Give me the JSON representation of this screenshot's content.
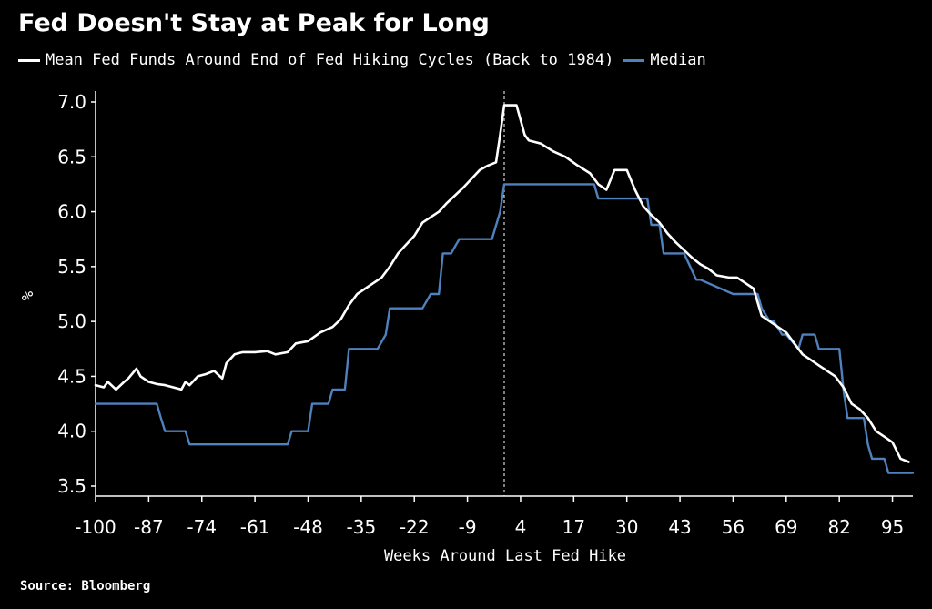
{
  "header": {
    "title": "Fed Doesn't Stay at Peak for Long"
  },
  "legend": [
    {
      "label": "Mean Fed Funds Around End of Fed Hiking Cycles (Back to 1984)",
      "color": "#ffffff"
    },
    {
      "label": "Median",
      "color": "#4f81bd"
    }
  ],
  "footer": {
    "source": "Source: Bloomberg"
  },
  "chart_data": {
    "type": "line",
    "title": "Fed Doesn't Stay at Peak for Long",
    "xlabel": "Weeks Around Last Fed Hike",
    "ylabel": "%",
    "xlim": [
      -100,
      100
    ],
    "ylim": [
      3.5,
      7.0
    ],
    "x_ticks": [
      -100,
      -87,
      -74,
      -61,
      -48,
      -35,
      -22,
      -9,
      4,
      17,
      30,
      43,
      56,
      69,
      82,
      95
    ],
    "y_ticks": [
      3.5,
      4.0,
      4.5,
      5.0,
      5.5,
      6.0,
      6.5,
      7.0
    ],
    "y_tick_labels": [
      "3.5",
      "4.0",
      "4.5",
      "5.0",
      "5.5",
      "6.0",
      "6.5",
      "7.0"
    ],
    "reference_line_x": 0,
    "grid": false,
    "legend_position": "top",
    "series": [
      {
        "name": "Mean Fed Funds Around End of Fed Hiking Cycles (Back to 1984)",
        "color": "#ffffff",
        "x": [
          -100,
          -98,
          -97,
          -95,
          -93,
          -92,
          -90,
          -89,
          -87,
          -85,
          -83,
          -81,
          -79,
          -78,
          -77,
          -75,
          -73,
          -71,
          -69,
          -68,
          -66,
          -64,
          -61,
          -58,
          -56,
          -53,
          -51,
          -48,
          -45,
          -42,
          -40,
          -38,
          -36,
          -34,
          -32,
          -30,
          -28,
          -26,
          -24,
          -22,
          -20,
          -18,
          -16,
          -14,
          -12,
          -10,
          -8,
          -6,
          -4,
          -2,
          -1,
          0,
          1,
          3,
          5,
          6,
          9,
          12,
          15,
          18,
          21,
          23,
          25,
          27,
          30,
          32,
          34,
          36,
          38,
          40,
          42,
          44,
          46,
          48,
          50,
          52,
          55,
          57,
          59,
          61,
          63,
          65,
          67,
          69,
          71,
          73,
          75,
          77,
          79,
          81,
          83,
          85,
          87,
          89,
          91,
          93,
          95,
          97,
          99
        ],
        "y": [
          4.42,
          4.4,
          4.45,
          4.38,
          4.45,
          4.48,
          4.57,
          4.5,
          4.45,
          4.43,
          4.42,
          4.4,
          4.38,
          4.45,
          4.42,
          4.5,
          4.52,
          4.55,
          4.48,
          4.62,
          4.7,
          4.72,
          4.72,
          4.73,
          4.7,
          4.72,
          4.8,
          4.82,
          4.9,
          4.95,
          5.02,
          5.15,
          5.25,
          5.3,
          5.35,
          5.4,
          5.5,
          5.62,
          5.7,
          5.78,
          5.9,
          5.95,
          6.0,
          6.08,
          6.15,
          6.22,
          6.3,
          6.38,
          6.42,
          6.45,
          6.7,
          6.97,
          6.97,
          6.97,
          6.7,
          6.65,
          6.62,
          6.55,
          6.5,
          6.42,
          6.35,
          6.25,
          6.2,
          6.38,
          6.38,
          6.2,
          6.05,
          5.97,
          5.9,
          5.8,
          5.72,
          5.65,
          5.58,
          5.52,
          5.48,
          5.42,
          5.4,
          5.4,
          5.35,
          5.3,
          5.05,
          5.0,
          4.95,
          4.9,
          4.8,
          4.7,
          4.65,
          4.6,
          4.55,
          4.5,
          4.4,
          4.25,
          4.2,
          4.12,
          4.0,
          3.95,
          3.9,
          3.75,
          3.72
        ]
      },
      {
        "name": "Median",
        "color": "#4f81bd",
        "x": [
          -100,
          -85,
          -84,
          -83,
          -78,
          -77,
          -70,
          -61,
          -53,
          -52,
          -48,
          -47,
          -43,
          -42,
          -39,
          -38,
          -34,
          -31,
          -29,
          -28,
          -22,
          -20,
          -18,
          -16,
          -15,
          -13,
          -11,
          -10,
          -9,
          -7,
          -3,
          -1,
          0,
          2,
          16,
          17,
          22,
          23,
          30,
          31,
          35,
          36,
          38,
          39,
          43,
          44,
          47,
          48,
          56,
          62,
          63,
          65,
          66,
          68,
          69,
          72,
          73,
          76,
          77,
          80,
          82,
          83,
          84,
          88,
          89,
          90,
          93,
          94,
          96,
          100
        ],
        "y": [
          4.25,
          4.25,
          4.12,
          4.0,
          4.0,
          3.88,
          3.88,
          3.88,
          3.88,
          4.0,
          4.0,
          4.25,
          4.25,
          4.38,
          4.38,
          4.75,
          4.75,
          4.75,
          4.88,
          5.12,
          5.12,
          5.12,
          5.25,
          5.25,
          5.62,
          5.62,
          5.75,
          5.75,
          5.75,
          5.75,
          5.75,
          6.0,
          6.25,
          6.25,
          6.25,
          6.25,
          6.25,
          6.12,
          6.12,
          6.12,
          6.12,
          5.88,
          5.88,
          5.62,
          5.62,
          5.62,
          5.38,
          5.38,
          5.25,
          5.25,
          5.12,
          5.0,
          5.0,
          4.88,
          4.88,
          4.75,
          4.88,
          4.88,
          4.75,
          4.75,
          4.75,
          4.38,
          4.12,
          4.12,
          3.88,
          3.75,
          3.75,
          3.62,
          3.62,
          3.62
        ]
      }
    ]
  }
}
